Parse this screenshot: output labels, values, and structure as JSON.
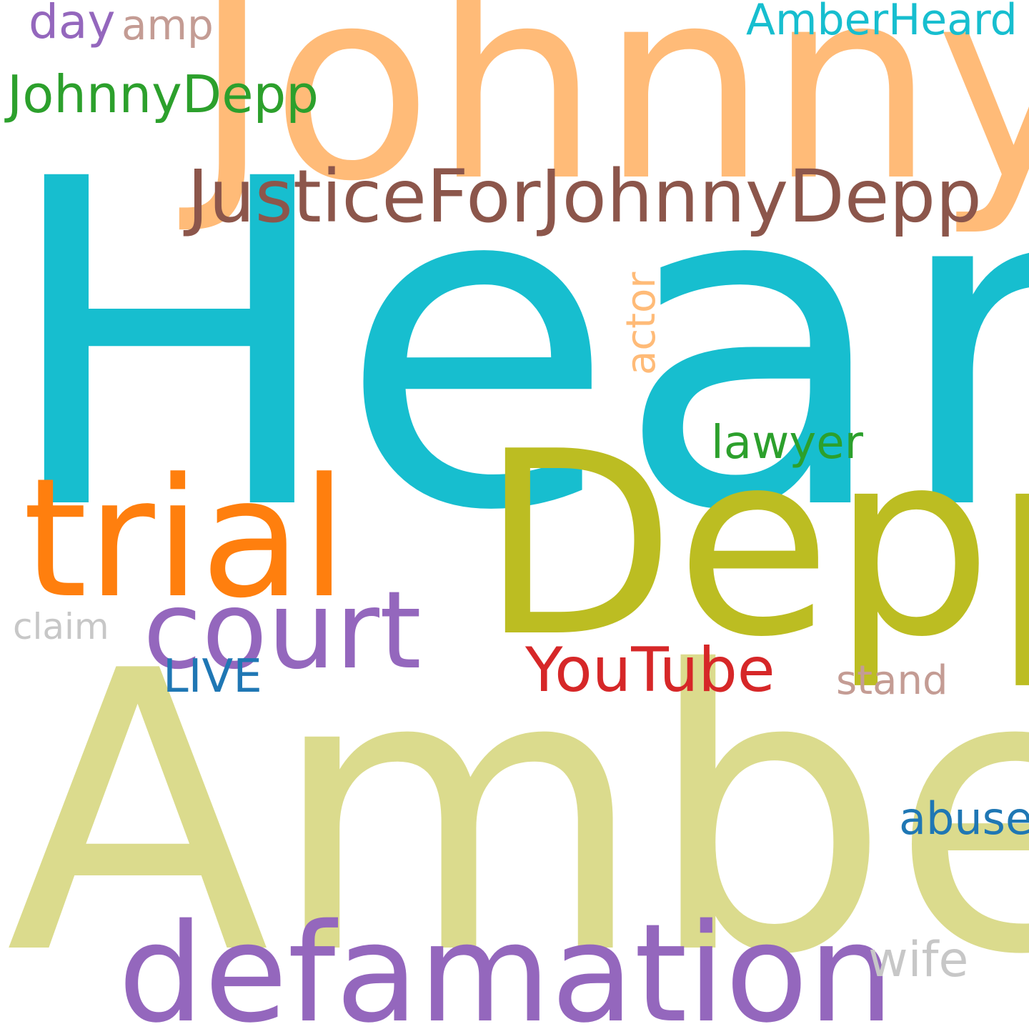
{
  "words": [
    {
      "text": "Heard",
      "color": "#17becf"
    },
    {
      "text": "Johnny",
      "color": "#ffbb78"
    },
    {
      "text": "Amber",
      "color": "#dbdb8d"
    },
    {
      "text": "Depp",
      "color": "#bcbd22"
    },
    {
      "text": "defamation",
      "color": "#9467bd"
    },
    {
      "text": "trial",
      "color": "#ff7f0e"
    },
    {
      "text": "court",
      "color": "#9467bd"
    },
    {
      "text": "JusticeForJohnnyDepp",
      "color": "#8c564b"
    },
    {
      "text": "YouTube",
      "color": "#d62728"
    },
    {
      "text": "JohnnyDepp",
      "color": "#2ca02c"
    },
    {
      "text": "AmberHeard",
      "color": "#17becf"
    },
    {
      "text": "lawyer",
      "color": "#2ca02c"
    },
    {
      "text": "abuse",
      "color": "#1f77b4"
    },
    {
      "text": "stand",
      "color": "#c49c94"
    },
    {
      "text": "LIVE",
      "color": "#1f77b4"
    },
    {
      "text": "wife",
      "color": "#c7c7c7"
    },
    {
      "text": "claim",
      "color": "#c7c7c7"
    },
    {
      "text": "day",
      "color": "#9467bd"
    },
    {
      "text": "amp",
      "color": "#c49c94"
    },
    {
      "text": "actor",
      "color": "#ffbb78"
    }
  ]
}
